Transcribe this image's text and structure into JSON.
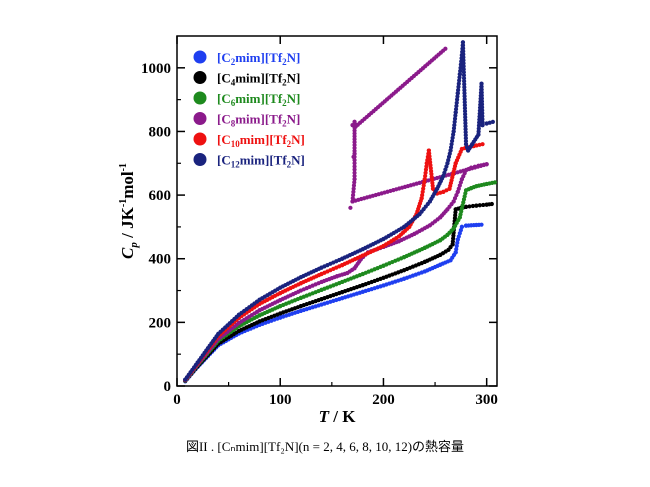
{
  "caption": "図II . [Cₙmim][Tf₂N](n = 2, 4, 6, 8, 10, 12)の熱容量",
  "chart_data": {
    "type": "scatter",
    "xlabel": "T / K",
    "ylabel": "Cp / JK-1mol-1",
    "xlim": [
      0,
      310
    ],
    "ylim": [
      0,
      1100
    ],
    "xticks": [
      0,
      100,
      200,
      300
    ],
    "yticks": [
      0,
      200,
      400,
      600,
      800,
      1000
    ],
    "legend_position": "top-left",
    "series": [
      {
        "name": "[C2mim][Tf2N]",
        "color": "#1f3ff0",
        "points": [
          [
            8,
            15
          ],
          [
            20,
            60
          ],
          [
            40,
            128
          ],
          [
            60,
            165
          ],
          [
            80,
            192
          ],
          [
            100,
            215
          ],
          [
            120,
            236
          ],
          [
            140,
            256
          ],
          [
            160,
            276
          ],
          [
            180,
            296
          ],
          [
            200,
            316
          ],
          [
            220,
            337
          ],
          [
            240,
            360
          ],
          [
            255,
            381
          ],
          [
            265,
            395
          ],
          [
            270,
            420
          ],
          [
            272,
            460
          ],
          [
            276,
            500
          ],
          [
            280,
            504
          ],
          [
            285,
            505
          ],
          [
            290,
            506
          ],
          [
            295,
            507
          ]
        ]
      },
      {
        "name": "[C4mim][Tf2N]",
        "color": "#000000",
        "points": [
          [
            8,
            16
          ],
          [
            20,
            62
          ],
          [
            40,
            133
          ],
          [
            60,
            173
          ],
          [
            80,
            203
          ],
          [
            100,
            228
          ],
          [
            120,
            251
          ],
          [
            140,
            273
          ],
          [
            160,
            295
          ],
          [
            180,
            317
          ],
          [
            200,
            340
          ],
          [
            220,
            364
          ],
          [
            240,
            390
          ],
          [
            255,
            412
          ],
          [
            263,
            428
          ],
          [
            267,
            445
          ],
          [
            270,
            555
          ],
          [
            275,
            560
          ],
          [
            280,
            563
          ],
          [
            290,
            567
          ],
          [
            300,
            570
          ],
          [
            305,
            572
          ]
        ]
      },
      {
        "name": "[C6mim][Tf2N]",
        "color": "#1e8a1e",
        "points": [
          [
            8,
            17
          ],
          [
            20,
            66
          ],
          [
            40,
            142
          ],
          [
            60,
            188
          ],
          [
            80,
            222
          ],
          [
            100,
            251
          ],
          [
            120,
            277
          ],
          [
            140,
            302
          ],
          [
            160,
            327
          ],
          [
            180,
            352
          ],
          [
            200,
            378
          ],
          [
            220,
            405
          ],
          [
            240,
            434
          ],
          [
            255,
            458
          ],
          [
            262,
            475
          ],
          [
            268,
            495
          ],
          [
            274,
            530
          ],
          [
            280,
            615
          ],
          [
            285,
            622
          ],
          [
            290,
            628
          ],
          [
            300,
            635
          ],
          [
            308,
            640
          ]
        ]
      },
      {
        "name": "[C8mim][Tf2N]",
        "color": "#8b1a8b",
        "points": [
          [
            8,
            18
          ],
          [
            20,
            68
          ],
          [
            40,
            148
          ],
          [
            60,
            198
          ],
          [
            80,
            238
          ],
          [
            100,
            270
          ],
          [
            120,
            300
          ],
          [
            140,
            327
          ],
          [
            155,
            345
          ],
          [
            165,
            355
          ],
          [
            172,
            370
          ],
          [
            178,
            398
          ],
          [
            185,
            420
          ],
          [
            200,
            437
          ],
          [
            215,
            455
          ],
          [
            230,
            478
          ],
          [
            245,
            505
          ],
          [
            255,
            530
          ],
          [
            262,
            555
          ],
          [
            268,
            580
          ],
          [
            272,
            610
          ],
          [
            276,
            650
          ],
          [
            280,
            678
          ],
          [
            285,
            686
          ],
          [
            292,
            692
          ],
          [
            300,
            697
          ],
          [
            168,
            560
          ],
          [
            170,
            580
          ],
          [
            172,
            650
          ],
          [
            171,
            720
          ],
          [
            172,
            730
          ],
          [
            170,
            820
          ],
          [
            172,
            830
          ],
          [
            173,
            815
          ],
          [
            260,
            1060
          ]
        ]
      },
      {
        "name": "[C10mim][Tf2N]",
        "color": "#ee1111",
        "points": [
          [
            8,
            19
          ],
          [
            20,
            71
          ],
          [
            40,
            157
          ],
          [
            60,
            214
          ],
          [
            80,
            258
          ],
          [
            100,
            292
          ],
          [
            120,
            323
          ],
          [
            140,
            352
          ],
          [
            160,
            380
          ],
          [
            180,
            410
          ],
          [
            200,
            440
          ],
          [
            215,
            470
          ],
          [
            225,
            500
          ],
          [
            232,
            540
          ],
          [
            237,
            590
          ],
          [
            240,
            650
          ],
          [
            242,
            700
          ],
          [
            244,
            740
          ],
          [
            248,
            620
          ],
          [
            252,
            605
          ],
          [
            258,
            610
          ],
          [
            264,
            620
          ],
          [
            270,
            700
          ],
          [
            276,
            745
          ],
          [
            282,
            750
          ],
          [
            290,
            756
          ],
          [
            296,
            760
          ]
        ]
      },
      {
        "name": "[C12mim][Tf2N]",
        "color": "#1a237e",
        "points": [
          [
            8,
            20
          ],
          [
            20,
            74
          ],
          [
            40,
            164
          ],
          [
            60,
            224
          ],
          [
            80,
            271
          ],
          [
            100,
            309
          ],
          [
            120,
            342
          ],
          [
            140,
            372
          ],
          [
            160,
            400
          ],
          [
            180,
            430
          ],
          [
            200,
            462
          ],
          [
            220,
            500
          ],
          [
            235,
            540
          ],
          [
            245,
            580
          ],
          [
            252,
            620
          ],
          [
            258,
            660
          ],
          [
            262,
            700
          ],
          [
            265,
            740
          ],
          [
            268,
            800
          ],
          [
            270,
            860
          ],
          [
            272,
            920
          ],
          [
            274,
            980
          ],
          [
            276,
            1040
          ],
          [
            277,
            1080
          ],
          [
            280,
            760
          ],
          [
            282,
            740
          ],
          [
            286,
            760
          ],
          [
            292,
            790
          ],
          [
            295,
            950
          ],
          [
            296,
            820
          ],
          [
            300,
            825
          ],
          [
            306,
            830
          ]
        ]
      }
    ]
  }
}
